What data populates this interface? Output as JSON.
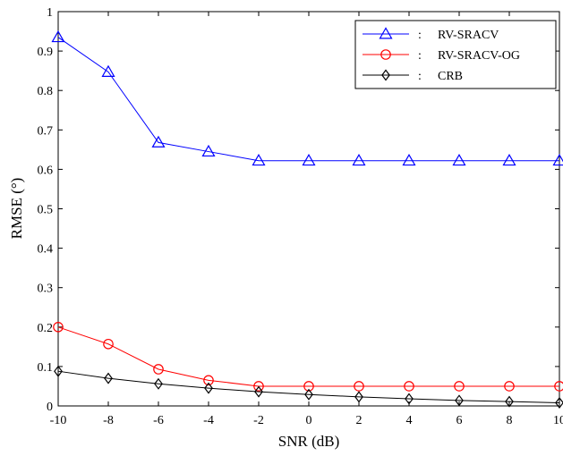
{
  "chart_data": {
    "type": "line",
    "xlabel": "SNR (dB)",
    "ylabel": "RMSE (°)",
    "x": [
      -10,
      -8,
      -6,
      -4,
      -2,
      0,
      2,
      4,
      6,
      8,
      10
    ],
    "xlim": [
      -10,
      10
    ],
    "ylim": [
      0,
      1
    ],
    "xticks": [
      -10,
      -8,
      -6,
      -4,
      -2,
      0,
      2,
      4,
      6,
      8,
      10
    ],
    "yticks": [
      0,
      0.1,
      0.2,
      0.3,
      0.4,
      0.5,
      0.6,
      0.7,
      0.8,
      0.9,
      1
    ],
    "xtick_labels": [
      "-10",
      "-8",
      "-6",
      "-4",
      "-2",
      "0",
      "2",
      "4",
      "6",
      "8",
      "10"
    ],
    "ytick_labels": [
      "0",
      "0.1",
      "0.2",
      "0.3",
      "0.4",
      "0.5",
      "0.6",
      "0.7",
      "0.8",
      "0.9",
      "1"
    ],
    "grid": false,
    "legend_position": "top-right",
    "legend_separator": ":",
    "series": [
      {
        "name": "RV-SRACV",
        "color": "#0000ff",
        "marker": "triangle",
        "values": [
          0.935,
          0.847,
          0.668,
          0.645,
          0.622,
          0.622,
          0.622,
          0.622,
          0.622,
          0.622,
          0.622
        ]
      },
      {
        "name": "RV-SRACV-OG",
        "color": "#ff0000",
        "marker": "circle",
        "values": [
          0.2,
          0.157,
          0.093,
          0.065,
          0.05,
          0.05,
          0.05,
          0.05,
          0.05,
          0.05,
          0.05
        ]
      },
      {
        "name": "CRB",
        "color": "#000000",
        "marker": "diamond",
        "values": [
          0.088,
          0.07,
          0.056,
          0.045,
          0.036,
          0.029,
          0.023,
          0.018,
          0.014,
          0.011,
          0.008
        ]
      }
    ]
  }
}
